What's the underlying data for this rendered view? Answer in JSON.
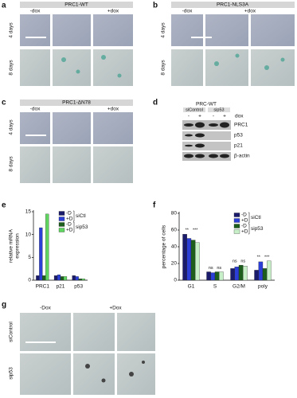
{
  "panels": {
    "a": {
      "label": "a",
      "title": "PRC1-WT",
      "columns": [
        "-dox",
        "+dox"
      ],
      "rows": [
        "4 days",
        "8 days"
      ]
    },
    "b": {
      "label": "b",
      "title": "PRC1-NLS3A",
      "columns": [
        "-dox",
        "+dox"
      ],
      "rows": [
        "4 days",
        "8 days"
      ]
    },
    "c": {
      "label": "c",
      "title": "PRC1-ΔN78",
      "columns": [
        "-dox",
        "+dox"
      ],
      "rows": [
        "4 days",
        "8 days"
      ]
    },
    "d": {
      "label": "d",
      "title": "PRC-WT",
      "groups": [
        "siControl",
        "sip53"
      ],
      "dox_signs": [
        "-",
        "+",
        "-",
        "+"
      ],
      "dox_label": "dox",
      "bands": [
        "PRC1",
        "p53",
        "p21",
        "β-actin"
      ]
    },
    "e": {
      "label": "e"
    },
    "f": {
      "label": "f"
    },
    "g": {
      "label": "g",
      "columns": [
        "-Dox",
        "+Dox"
      ],
      "rows": [
        "siControl",
        "sip53"
      ]
    }
  },
  "chart_data": [
    {
      "type": "bar",
      "y_label": [
        "relative mRNA",
        "expression"
      ],
      "categories": [
        "PRC1",
        "p21",
        "p53"
      ],
      "series": [
        {
          "name": "-D",
          "color": "#1b1b6b",
          "values": [
            1,
            1,
            1
          ]
        },
        {
          "name": "+D",
          "color": "#2b3fd6",
          "values": [
            11.5,
            1.2,
            0.8
          ]
        },
        {
          "name": "-D",
          "color": "#1d5e1d",
          "values": [
            1,
            0.8,
            0.3
          ]
        },
        {
          "name": "+D",
          "color": "#5fd65f",
          "values": [
            14.5,
            0.8,
            0.3
          ]
        }
      ],
      "legend_groups": [
        "siCtl",
        "sip53"
      ],
      "ylim": [
        0,
        15
      ],
      "yticks": [
        0,
        5,
        10,
        15
      ]
    },
    {
      "type": "bar",
      "y_label": [
        "percentage of cells"
      ],
      "categories": [
        "G1",
        "S",
        "G2/M",
        "poly"
      ],
      "series": [
        {
          "name": "-D",
          "color": "#1b1b6b",
          "values": [
            55,
            10,
            14,
            12
          ]
        },
        {
          "name": "+D",
          "color": "#2b3fd6",
          "values": [
            50,
            9,
            16,
            22
          ]
        },
        {
          "name": "-D",
          "color": "#1d5e1d",
          "values": [
            48,
            10,
            18,
            14
          ]
        },
        {
          "name": "+D",
          "color": "#c8f0c8",
          "values": [
            45,
            10,
            17,
            23
          ]
        }
      ],
      "legend_groups": [
        "siCtl",
        "sip53"
      ],
      "annotations": [
        [
          "**",
          "***"
        ],
        [
          "ns",
          "ns"
        ],
        [
          "ns",
          "ns"
        ],
        [
          "**",
          "***"
        ]
      ],
      "ylim": [
        0,
        80
      ],
      "yticks": [
        0,
        20,
        40,
        60,
        80
      ]
    }
  ]
}
